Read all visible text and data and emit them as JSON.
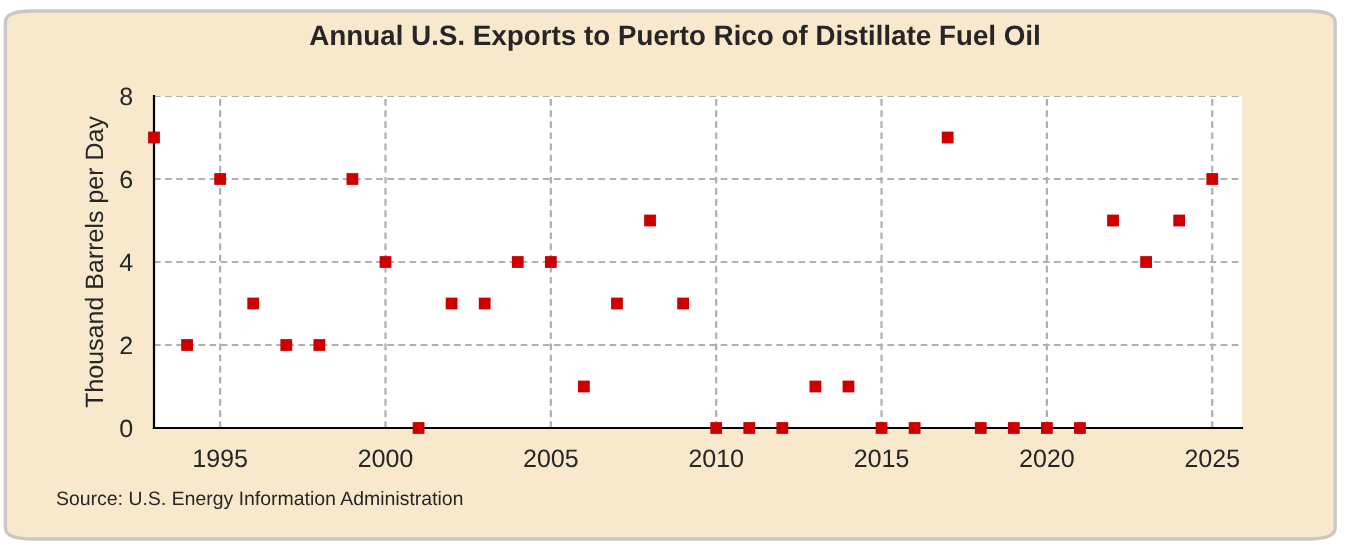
{
  "chart_data": {
    "type": "scatter",
    "title": "Annual U.S. Exports to Puerto Rico of Distillate Fuel Oil",
    "ylabel": "Thousand Barrels per Day",
    "x": [
      1993,
      1994,
      1995,
      1996,
      1997,
      1998,
      1999,
      2000,
      2001,
      2002,
      2003,
      2004,
      2005,
      2006,
      2007,
      2008,
      2009,
      2010,
      2011,
      2012,
      2013,
      2014,
      2015,
      2016,
      2017,
      2018,
      2019,
      2020,
      2021,
      2022,
      2023,
      2024,
      2025
    ],
    "series": [
      {
        "color": "#cc0000",
        "values": [
          7,
          2,
          6,
          3,
          2,
          2,
          6,
          4,
          0,
          3,
          3,
          4,
          4,
          1,
          3,
          5,
          3,
          0,
          0,
          0,
          1,
          1,
          0,
          0,
          7,
          0,
          0,
          0,
          0,
          5,
          4,
          5,
          6
        ]
      }
    ],
    "xlim": [
      1993,
      2025.9
    ],
    "xticks": [
      1995,
      2000,
      2005,
      2010,
      2015,
      2020,
      2025
    ],
    "ylim": [
      0,
      8
    ],
    "yticks": [
      0,
      2,
      4,
      6,
      8
    ],
    "grid": true,
    "marker": "square",
    "annotations": [
      "Source: U.S. Energy Information Administration"
    ]
  }
}
